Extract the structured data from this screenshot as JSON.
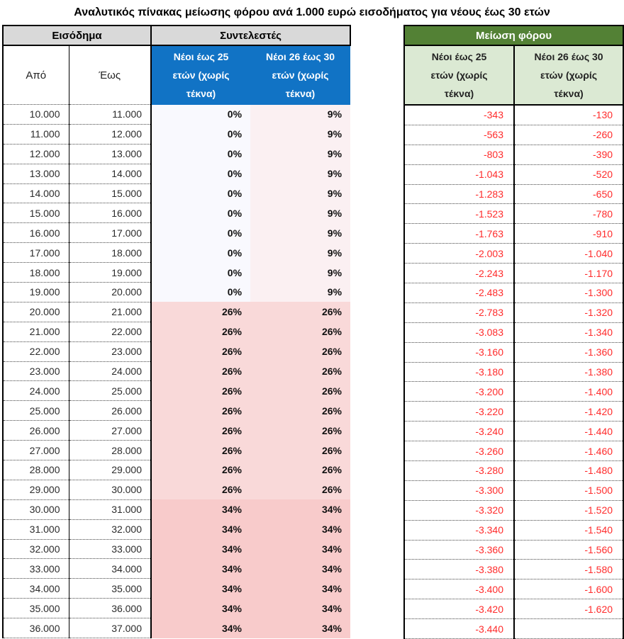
{
  "title": "Αναλυτικός πίνακας μείωσης φόρου ανά 1.000 ευρώ εισοδήματος για νέους έως 30 ετών",
  "left_table": {
    "income_header": "Εισόδημα",
    "rates_header": "Συντελεστές",
    "from_label": "Από",
    "to_label": "Έως",
    "col_under25_label": "Νέοι έως 25\nετών (χωρίς\nτέκνα)",
    "col_26_30_label": "Νέοι 26 έως 30\nετών (χωρίς\nτέκνα)"
  },
  "right_table": {
    "header": "Μείωση φόρου",
    "col_under25_label": "Νέοι έως 25\nετών (χωρίς\nτέκνα)",
    "col_26_30_label": "Νέοι 26 έως 30\nετών (χωρίς\nτέκνα)"
  },
  "colors": {
    "gray_header": "#D9D9D9",
    "blue_header": "#1173C5",
    "green_header": "#538135",
    "light_green_header": "#DBE9D3",
    "negative_text": "#FF2B2B",
    "rate_scale": {
      "0%": "#F9F9FE",
      "9%": "#FBF0F2",
      "26%": "#F9D9D9",
      "34%": "#F8CBCB"
    }
  },
  "rows": [
    {
      "from": "10.000",
      "to": "11.000",
      "rate_25": "0%",
      "rate_26_30": "9%",
      "reduction_25": "-343",
      "reduction_26_30": "-130"
    },
    {
      "from": "11.000",
      "to": "12.000",
      "rate_25": "0%",
      "rate_26_30": "9%",
      "reduction_25": "-563",
      "reduction_26_30": "-260"
    },
    {
      "from": "12.000",
      "to": "13.000",
      "rate_25": "0%",
      "rate_26_30": "9%",
      "reduction_25": "-803",
      "reduction_26_30": "-390"
    },
    {
      "from": "13.000",
      "to": "14.000",
      "rate_25": "0%",
      "rate_26_30": "9%",
      "reduction_25": "-1.043",
      "reduction_26_30": "-520"
    },
    {
      "from": "14.000",
      "to": "15.000",
      "rate_25": "0%",
      "rate_26_30": "9%",
      "reduction_25": "-1.283",
      "reduction_26_30": "-650"
    },
    {
      "from": "15.000",
      "to": "16.000",
      "rate_25": "0%",
      "rate_26_30": "9%",
      "reduction_25": "-1.523",
      "reduction_26_30": "-780"
    },
    {
      "from": "16.000",
      "to": "17.000",
      "rate_25": "0%",
      "rate_26_30": "9%",
      "reduction_25": "-1.763",
      "reduction_26_30": "-910"
    },
    {
      "from": "17.000",
      "to": "18.000",
      "rate_25": "0%",
      "rate_26_30": "9%",
      "reduction_25": "-2.003",
      "reduction_26_30": "-1.040"
    },
    {
      "from": "18.000",
      "to": "19.000",
      "rate_25": "0%",
      "rate_26_30": "9%",
      "reduction_25": "-2.243",
      "reduction_26_30": "-1.170"
    },
    {
      "from": "19.000",
      "to": "20.000",
      "rate_25": "0%",
      "rate_26_30": "9%",
      "reduction_25": "-2.483",
      "reduction_26_30": "-1.300"
    },
    {
      "from": "20.000",
      "to": "21.000",
      "rate_25": "26%",
      "rate_26_30": "26%",
      "reduction_25": "-2.783",
      "reduction_26_30": "-1.320"
    },
    {
      "from": "21.000",
      "to": "22.000",
      "rate_25": "26%",
      "rate_26_30": "26%",
      "reduction_25": "-3.083",
      "reduction_26_30": "-1.340"
    },
    {
      "from": "22.000",
      "to": "23.000",
      "rate_25": "26%",
      "rate_26_30": "26%",
      "reduction_25": "-3.160",
      "reduction_26_30": "-1.360"
    },
    {
      "from": "23.000",
      "to": "24.000",
      "rate_25": "26%",
      "rate_26_30": "26%",
      "reduction_25": "-3.180",
      "reduction_26_30": "-1.380"
    },
    {
      "from": "24.000",
      "to": "25.000",
      "rate_25": "26%",
      "rate_26_30": "26%",
      "reduction_25": "-3.200",
      "reduction_26_30": "-1.400"
    },
    {
      "from": "25.000",
      "to": "26.000",
      "rate_25": "26%",
      "rate_26_30": "26%",
      "reduction_25": "-3.220",
      "reduction_26_30": "-1.420"
    },
    {
      "from": "26.000",
      "to": "27.000",
      "rate_25": "26%",
      "rate_26_30": "26%",
      "reduction_25": "-3.240",
      "reduction_26_30": "-1.440"
    },
    {
      "from": "27.000",
      "to": "28.000",
      "rate_25": "26%",
      "rate_26_30": "26%",
      "reduction_25": "-3.260",
      "reduction_26_30": "-1.460"
    },
    {
      "from": "28.000",
      "to": "29.000",
      "rate_25": "26%",
      "rate_26_30": "26%",
      "reduction_25": "-3.280",
      "reduction_26_30": "-1.480"
    },
    {
      "from": "29.000",
      "to": "30.000",
      "rate_25": "26%",
      "rate_26_30": "26%",
      "reduction_25": "-3.300",
      "reduction_26_30": "-1.500"
    },
    {
      "from": "30.000",
      "to": "31.000",
      "rate_25": "34%",
      "rate_26_30": "34%",
      "reduction_25": "-3.320",
      "reduction_26_30": "-1.520"
    },
    {
      "from": "31.000",
      "to": "32.000",
      "rate_25": "34%",
      "rate_26_30": "34%",
      "reduction_25": "-3.340",
      "reduction_26_30": "-1.540"
    },
    {
      "from": "32.000",
      "to": "33.000",
      "rate_25": "34%",
      "rate_26_30": "34%",
      "reduction_25": "-3.360",
      "reduction_26_30": "-1.560"
    },
    {
      "from": "33.000",
      "to": "34.000",
      "rate_25": "34%",
      "rate_26_30": "34%",
      "reduction_25": "-3.380",
      "reduction_26_30": "-1.580"
    },
    {
      "from": "34.000",
      "to": "35.000",
      "rate_25": "34%",
      "rate_26_30": "34%",
      "reduction_25": "-3.400",
      "reduction_26_30": "-1.600"
    },
    {
      "from": "35.000",
      "to": "36.000",
      "rate_25": "34%",
      "rate_26_30": "34%",
      "reduction_25": "-3.420",
      "reduction_26_30": "-1.620"
    },
    {
      "from": "36.000",
      "to": "37.000",
      "rate_25": "34%",
      "rate_26_30": "34%",
      "reduction_25": "-3.440",
      "reduction_26_30": ""
    }
  ]
}
